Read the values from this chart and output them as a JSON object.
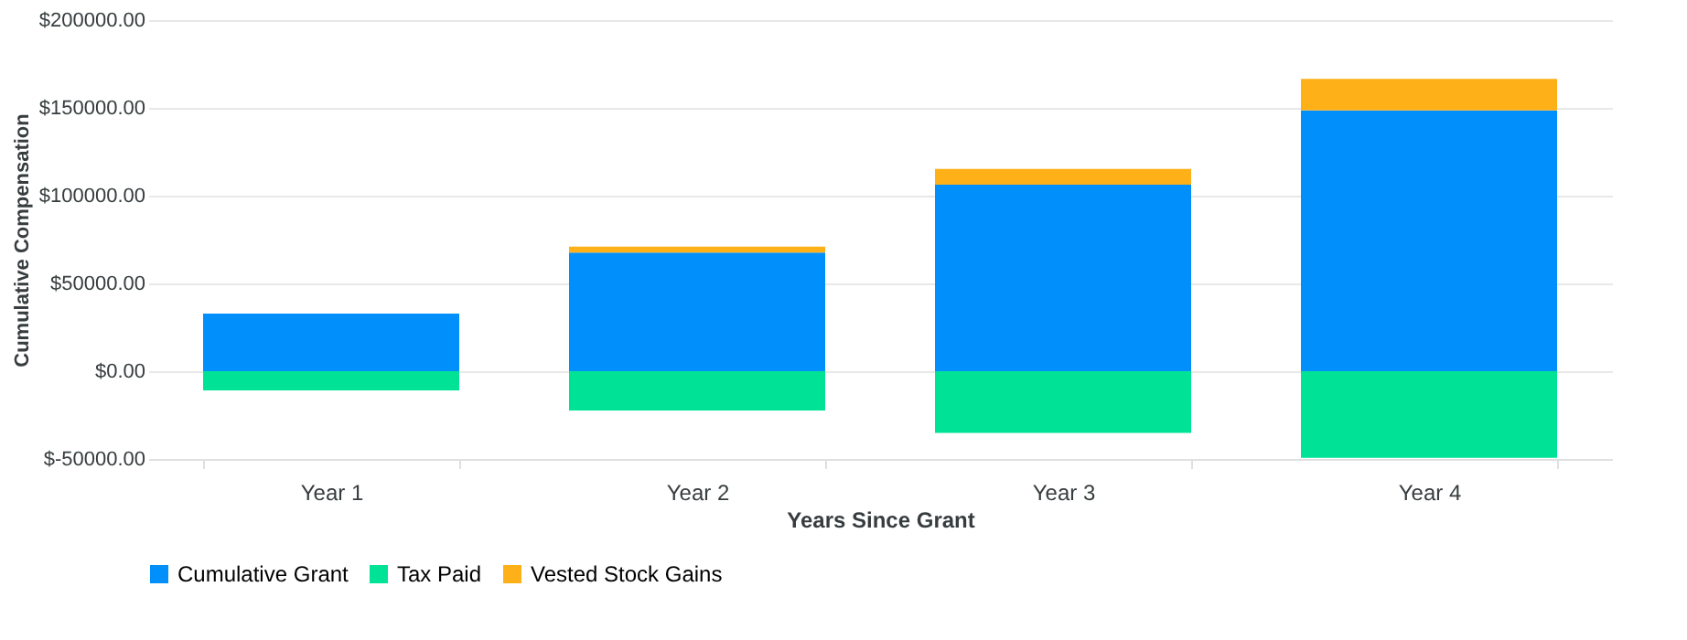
{
  "chart_data": {
    "type": "bar",
    "stacked": true,
    "xlabel": "Years Since Grant",
    "ylabel": "Cumulative Compensation",
    "categories": [
      "Year 1",
      "Year 2",
      "Year 3",
      "Year 4"
    ],
    "series": [
      {
        "name": "Cumulative Grant",
        "color": "#008ffb",
        "values": [
          32800,
          67600,
          106200,
          148600
        ]
      },
      {
        "name": "Tax Paid",
        "color": "#00e396",
        "values": [
          -11000,
          -22400,
          -35200,
          -49300
        ]
      },
      {
        "name": "Vested Stock Gains",
        "color": "#feb019",
        "values": [
          0,
          3400,
          9000,
          17900
        ]
      }
    ],
    "ylim": [
      -50000,
      200000
    ],
    "yticks": [
      {
        "value": -50000,
        "label": "$-50000.00"
      },
      {
        "value": 0,
        "label": "$0.00"
      },
      {
        "value": 50000,
        "label": "$50000.00"
      },
      {
        "value": 100000,
        "label": "$100000.00"
      },
      {
        "value": 150000,
        "label": "$150000.00"
      },
      {
        "value": 200000,
        "label": "$200000.00"
      }
    ],
    "grid": "y",
    "legend": "bottom"
  }
}
